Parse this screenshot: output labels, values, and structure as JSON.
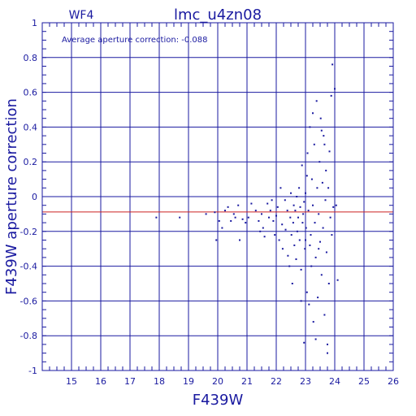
{
  "chart_data": {
    "type": "scatter",
    "title": "lmc_u4zn08",
    "subtitle": "WF4",
    "xlabel": "F439W",
    "ylabel": "F439W aperture correction",
    "annotation": "Average aperture correction: -0.088",
    "xlim": [
      14,
      26
    ],
    "ylim": [
      -1,
      1
    ],
    "x_ticks": [
      "15",
      "16",
      "17",
      "18",
      "19",
      "20",
      "21",
      "22",
      "23",
      "24",
      "25",
      "26"
    ],
    "y_ticks": [
      "1",
      "0.8",
      "0.6",
      "0.4",
      "0.2",
      "0",
      "-0.2",
      "-0.4",
      "-0.6",
      "-0.8",
      "-1"
    ],
    "grid": true,
    "reference_line": {
      "y": -0.088,
      "color": "#cc2222"
    },
    "colors": {
      "axes": "#1a1aa0",
      "points": "#1a1aa0",
      "background": "#ffffff"
    },
    "series": [
      {
        "points": [
          [
            17.9,
            -0.12
          ],
          [
            18.7,
            -0.12
          ],
          [
            19.6,
            -0.1
          ],
          [
            19.9,
            -0.09
          ],
          [
            19.95,
            -0.25
          ],
          [
            20.05,
            -0.14
          ],
          [
            20.15,
            -0.18
          ],
          [
            20.25,
            -0.08
          ],
          [
            20.35,
            -0.06
          ],
          [
            20.45,
            -0.14
          ],
          [
            20.55,
            -0.1
          ],
          [
            20.6,
            -0.12
          ],
          [
            20.7,
            -0.05
          ],
          [
            20.75,
            -0.25
          ],
          [
            20.85,
            -0.13
          ],
          [
            20.95,
            -0.15
          ],
          [
            21.05,
            -0.12
          ],
          [
            21.15,
            -0.04
          ],
          [
            21.3,
            -0.08
          ],
          [
            21.4,
            -0.14
          ],
          [
            21.45,
            -0.2
          ],
          [
            21.5,
            -0.1
          ],
          [
            21.55,
            -0.18
          ],
          [
            21.6,
            -0.23
          ],
          [
            21.7,
            -0.04
          ],
          [
            21.75,
            -0.12
          ],
          [
            21.8,
            -0.08
          ],
          [
            21.85,
            -0.02
          ],
          [
            21.9,
            -0.14
          ],
          [
            21.95,
            -0.22
          ],
          [
            22.0,
            -0.11
          ],
          [
            22.05,
            -0.06
          ],
          [
            22.1,
            -0.25
          ],
          [
            22.15,
            0.05
          ],
          [
            22.2,
            -0.16
          ],
          [
            22.22,
            -0.3
          ],
          [
            22.3,
            -0.02
          ],
          [
            22.32,
            -0.19
          ],
          [
            22.38,
            -0.08
          ],
          [
            22.4,
            -0.34
          ],
          [
            22.45,
            -0.4
          ],
          [
            22.48,
            -0.12
          ],
          [
            22.5,
            0.02
          ],
          [
            22.52,
            -0.22
          ],
          [
            22.55,
            -0.5
          ],
          [
            22.58,
            -0.15
          ],
          [
            22.6,
            -0.05
          ],
          [
            22.62,
            -0.28
          ],
          [
            22.65,
            -0.08
          ],
          [
            22.68,
            -0.36
          ],
          [
            22.7,
            0.0
          ],
          [
            22.72,
            -0.2
          ],
          [
            22.75,
            -0.12
          ],
          [
            22.78,
            0.05
          ],
          [
            22.8,
            -0.25
          ],
          [
            22.82,
            -0.06
          ],
          [
            22.85,
            -0.42
          ],
          [
            22.88,
            0.18
          ],
          [
            22.9,
            -0.15
          ],
          [
            22.92,
            -0.1
          ],
          [
            22.95,
            -0.03
          ],
          [
            22.98,
            -0.3
          ],
          [
            23.0,
            0.02
          ],
          [
            23.02,
            -0.18
          ],
          [
            23.05,
            -0.55
          ],
          [
            23.07,
            0.25
          ],
          [
            23.1,
            -0.08
          ],
          [
            23.12,
            -0.62
          ],
          [
            23.15,
            0.4
          ],
          [
            23.18,
            -0.22
          ],
          [
            23.2,
            -0.4
          ],
          [
            23.22,
            0.1
          ],
          [
            23.25,
            -0.05
          ],
          [
            23.27,
            -0.72
          ],
          [
            23.3,
            0.3
          ],
          [
            23.32,
            -0.15
          ],
          [
            23.35,
            -0.35
          ],
          [
            23.38,
            0.55
          ],
          [
            23.4,
            0.05
          ],
          [
            23.42,
            -0.58
          ],
          [
            23.45,
            -0.1
          ],
          [
            23.48,
            0.2
          ],
          [
            23.5,
            -0.26
          ],
          [
            23.52,
            0.45
          ],
          [
            23.55,
            -0.45
          ],
          [
            23.58,
            0.08
          ],
          [
            23.6,
            -0.18
          ],
          [
            23.62,
            0.35
          ],
          [
            23.65,
            -0.68
          ],
          [
            23.68,
            -0.02
          ],
          [
            23.7,
            0.15
          ],
          [
            23.72,
            -0.32
          ],
          [
            23.75,
            -0.85
          ],
          [
            23.78,
            0.05
          ],
          [
            23.8,
            -0.5
          ],
          [
            23.82,
            0.26
          ],
          [
            23.85,
            -0.12
          ],
          [
            23.88,
            0.58
          ],
          [
            23.9,
            -0.22
          ],
          [
            23.92,
            0.76
          ],
          [
            23.95,
            -0.06
          ],
          [
            24.0,
            0.62
          ],
          [
            24.05,
            -0.05
          ],
          [
            24.1,
            -0.48
          ],
          [
            23.05,
            0.12
          ],
          [
            23.15,
            -0.28
          ],
          [
            23.25,
            0.48
          ],
          [
            23.35,
            -0.82
          ],
          [
            23.45,
            -0.3
          ],
          [
            23.55,
            0.38
          ],
          [
            23.65,
            0.3
          ],
          [
            23.75,
            -0.9
          ],
          [
            22.95,
            -0.84
          ],
          [
            23.0,
            -0.25
          ],
          [
            22.85,
            -0.6
          ]
        ]
      }
    ]
  }
}
